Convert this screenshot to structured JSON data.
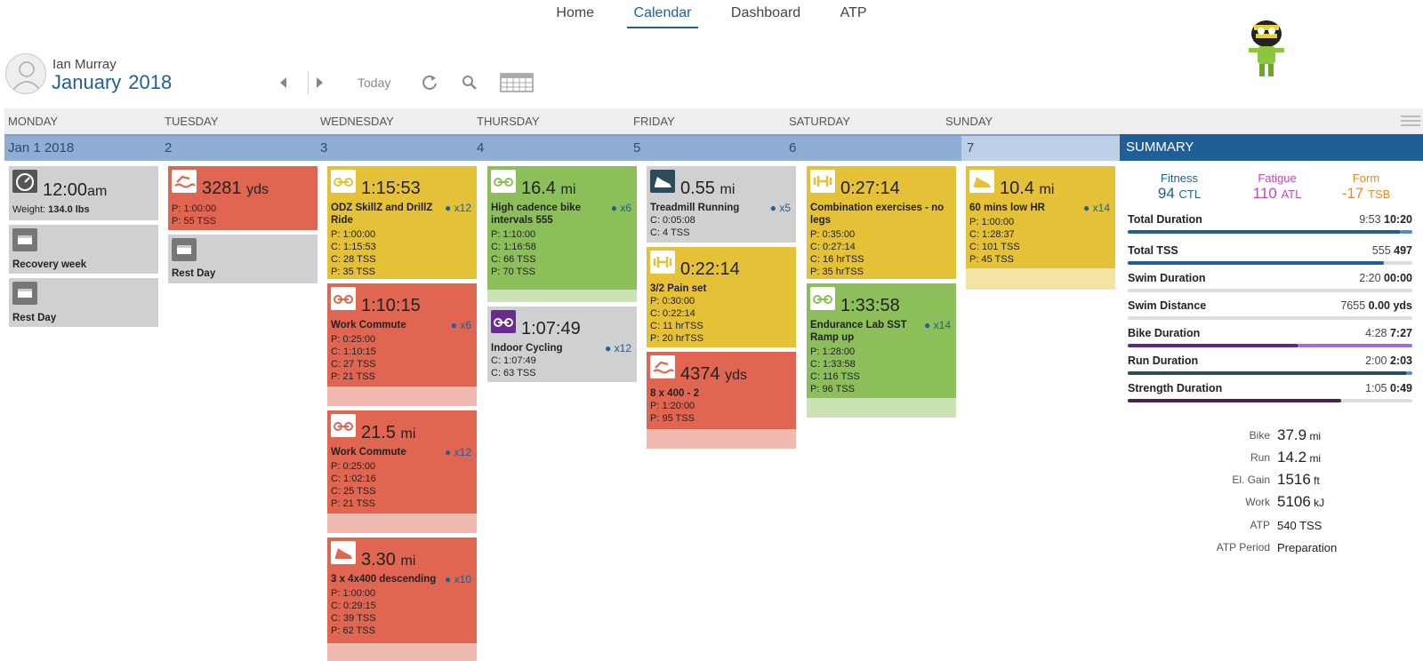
{
  "nav": {
    "items": [
      "Home",
      "Calendar",
      "Dashboard",
      "ATP"
    ],
    "active": "Calendar"
  },
  "user": {
    "name": "Ian Murray"
  },
  "month": {
    "name": "January",
    "year": "2018"
  },
  "toolbar": {
    "today": "Today"
  },
  "days": [
    "MONDAY",
    "TUESDAY",
    "WEDNESDAY",
    "THURSDAY",
    "FRIDAY",
    "SATURDAY",
    "SUNDAY"
  ],
  "dates": [
    "Jan 1 2018",
    "2",
    "3",
    "4",
    "5",
    "6",
    "7"
  ],
  "summary": {
    "title": "SUMMARY",
    "fitness": {
      "label": "Fitness",
      "value": "94",
      "unit": "CTL",
      "color": "#1f5e96"
    },
    "fatigue": {
      "label": "Fatigue",
      "value": "110",
      "unit": "ATL",
      "color": "#d43fc4"
    },
    "form": {
      "label": "Form",
      "value": "-17",
      "unit": "TSB",
      "color": "#f08a24"
    },
    "rows": [
      {
        "label": "Total Duration",
        "planned": "9:53",
        "done": "10:20"
      },
      {
        "label": "Total TSS",
        "planned": "555",
        "done": "497"
      },
      {
        "label": "Swim Duration",
        "planned": "2:20",
        "done": "00:00"
      },
      {
        "label": "Swim Distance",
        "planned": "7655",
        "done": "0.00 yds"
      },
      {
        "label": "Bike Duration",
        "planned": "4:28",
        "done": "7:27"
      },
      {
        "label": "Run Duration",
        "planned": "2:00",
        "done": "2:03"
      },
      {
        "label": "Strength Duration",
        "planned": "1:05",
        "done": "0:49"
      }
    ],
    "stats": [
      {
        "label": "Bike",
        "value": "37.9",
        "unit": "mi"
      },
      {
        "label": "Run",
        "value": "14.2",
        "unit": "mi"
      },
      {
        "label": "El. Gain",
        "value": "1516",
        "unit": "ft"
      },
      {
        "label": "Work",
        "value": "5106",
        "unit": "kJ"
      },
      {
        "label": "ATP",
        "value": "540 TSS",
        "unit": ""
      },
      {
        "label": "ATP Period",
        "value": "Preparation",
        "unit": ""
      }
    ]
  },
  "cards": {
    "mon1": {
      "big": "12:00",
      "unit": "am",
      "weight_label": "Weight:",
      "weight": "134.0 lbs"
    },
    "mon2": {
      "title": "Recovery week"
    },
    "mon3": {
      "title": "Rest Day"
    },
    "tue1": {
      "big": "3281",
      "unit": "yds",
      "lines": [
        "P: 1:00:00",
        "P: 55 TSS"
      ]
    },
    "tue2": {
      "title": "Rest Day"
    },
    "wed1": {
      "big": "1:15:53",
      "title": "ODZ SkillZ and DrillZ Ride",
      "athletes": "x12",
      "lines": [
        "P: 1:00:00",
        "C: 1:15:53",
        "C: 28 TSS",
        "P: 35 TSS"
      ]
    },
    "wed2": {
      "big": "1:10:15",
      "title": "Work Commute",
      "athletes": "x6",
      "lines": [
        "P: 0:25:00",
        "C: 1:10:15",
        "C: 27 TSS",
        "P: 21 TSS"
      ]
    },
    "wed3": {
      "big": "21.5",
      "unit": "mi",
      "title": "Work Commute",
      "athletes": "x12",
      "lines": [
        "P: 0:25:00",
        "C: 1:02:16",
        "C: 25 TSS",
        "P: 21 TSS"
      ]
    },
    "wed4": {
      "big": "3.30",
      "unit": "mi",
      "title": "3 x 4x400 descending",
      "athletes": "x10",
      "lines": [
        "P: 1:00:00",
        "C: 0:29:15",
        "C: 39 TSS",
        "P: 62 TSS"
      ]
    },
    "thu1": {
      "big": "16.4",
      "unit": "mi",
      "title": "High cadence bike intervals 555",
      "athletes": "x6",
      "lines": [
        "P: 1:10:00",
        "C: 1:16:58",
        "C: 66 TSS",
        "P: 70 TSS"
      ]
    },
    "thu2": {
      "big": "1:07:49",
      "title": "Indoor Cycling",
      "athletes": "x12",
      "lines": [
        "C: 1:07:49",
        "C: 63 TSS"
      ]
    },
    "fri1": {
      "big": "0.55",
      "unit": "mi",
      "title": "Treadmill Running",
      "athletes": "x5",
      "lines": [
        "C: 0:05:08",
        "C: 4 TSS"
      ]
    },
    "fri2": {
      "big": "0:22:14",
      "title": "3/2 Pain set",
      "lines": [
        "P: 0:30:00",
        "C: 0:22:14",
        "C: 11 hrTSS",
        "P: 20 hrTSS"
      ]
    },
    "fri3": {
      "big": "4374",
      "unit": "yds",
      "title": "8 x 400 - 2",
      "lines": [
        "P: 1:20:00",
        "P: 95 TSS"
      ]
    },
    "sat1": {
      "big": "0:27:14",
      "title": "Combination exercises - no legs",
      "lines": [
        "P: 0:35:00",
        "C: 0:27:14",
        "C: 16 hrTSS",
        "P: 35 hrTSS"
      ]
    },
    "sat2": {
      "big": "1:33:58",
      "title": "Endurance Lab SST Ramp up",
      "athletes": "x14",
      "lines": [
        "P: 1:28:00",
        "C: 1:33:58",
        "C: 116 TSS",
        "P: 96 TSS"
      ]
    },
    "sun1": {
      "big": "10.4",
      "unit": "mi",
      "title": "60 mins low HR",
      "athletes": "x14",
      "lines": [
        "P: 1:00:00",
        "C: 1:28:37",
        "C: 101 TSS",
        "P: 45 TSS"
      ]
    }
  }
}
